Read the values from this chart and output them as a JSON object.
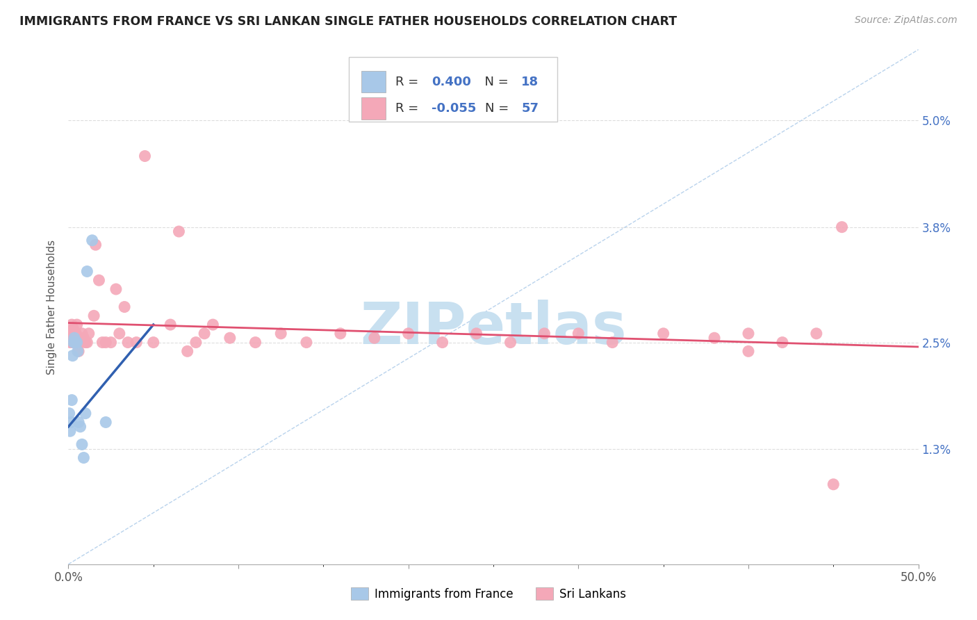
{
  "title": "IMMIGRANTS FROM FRANCE VS SRI LANKAN SINGLE FATHER HOUSEHOLDS CORRELATION CHART",
  "source": "Source: ZipAtlas.com",
  "xlabel_blue": "Immigrants from France",
  "xlabel_pink": "Sri Lankans",
  "ylabel": "Single Father Households",
  "xlim": [
    0.0,
    50.0
  ],
  "ylim": [
    0.0,
    5.8
  ],
  "yticks": [
    1.3,
    2.5,
    3.8,
    5.0
  ],
  "legend_blue_R": "0.400",
  "legend_blue_N": "18",
  "legend_pink_R": "-0.055",
  "legend_pink_N": "57",
  "blue_scatter_color": "#A8C8E8",
  "pink_scatter_color": "#F4A8B8",
  "blue_line_color": "#3060B0",
  "pink_line_color": "#E05070",
  "dash_line_color": "#A8C8E8",
  "watermark": "ZIPetlas",
  "watermark_color": "#C8E0F0",
  "background_color": "#FFFFFF",
  "grid_color": "#DDDDDD",
  "blue_scatter_x": [
    0.05,
    0.1,
    0.15,
    0.2,
    0.25,
    0.3,
    0.35,
    0.4,
    0.5,
    0.55,
    0.6,
    0.7,
    0.8,
    0.9,
    1.0,
    1.1,
    1.4,
    2.2
  ],
  "blue_scatter_y": [
    1.7,
    1.5,
    1.6,
    1.85,
    2.35,
    2.5,
    2.55,
    2.5,
    2.5,
    2.4,
    1.6,
    1.55,
    1.35,
    1.2,
    1.7,
    3.3,
    3.65,
    1.6
  ],
  "pink_scatter_x": [
    0.05,
    0.1,
    0.15,
    0.2,
    0.25,
    0.3,
    0.35,
    0.45,
    0.5,
    0.55,
    0.6,
    0.7,
    0.8,
    0.9,
    1.0,
    1.1,
    1.2,
    1.5,
    1.8,
    2.0,
    2.2,
    2.5,
    3.0,
    3.5,
    4.0,
    5.0,
    6.0,
    7.0,
    8.0,
    9.5,
    11.0,
    12.5,
    14.0,
    16.0,
    18.0,
    20.0,
    22.0,
    24.0,
    26.0,
    28.0,
    30.0,
    32.0,
    35.0,
    38.0,
    40.0,
    42.0,
    44.0,
    45.5,
    1.6,
    2.8,
    3.3,
    4.5,
    6.5,
    7.5,
    8.5,
    40.0,
    45.0
  ],
  "pink_scatter_y": [
    2.55,
    2.5,
    2.6,
    2.7,
    2.5,
    2.65,
    2.5,
    2.6,
    2.7,
    2.55,
    2.4,
    2.5,
    2.6,
    2.55,
    2.5,
    2.5,
    2.6,
    2.8,
    3.2,
    2.5,
    2.5,
    2.5,
    2.6,
    2.5,
    2.5,
    2.5,
    2.7,
    2.4,
    2.6,
    2.55,
    2.5,
    2.6,
    2.5,
    2.6,
    2.55,
    2.6,
    2.5,
    2.6,
    2.5,
    2.6,
    2.6,
    2.5,
    2.6,
    2.55,
    2.6,
    2.5,
    2.6,
    3.8,
    3.6,
    3.1,
    2.9,
    4.6,
    3.75,
    2.5,
    2.7,
    2.4,
    0.9
  ],
  "blue_line_x0": 0.0,
  "blue_line_y0": 1.55,
  "blue_line_x1": 5.0,
  "blue_line_y1": 2.7,
  "pink_line_x0": 0.0,
  "pink_line_y0": 2.72,
  "pink_line_x1": 50.0,
  "pink_line_y1": 2.45,
  "dash_line_x0": 0.0,
  "dash_line_y0": 0.0,
  "dash_line_x1": 50.0,
  "dash_line_y1": 5.8
}
